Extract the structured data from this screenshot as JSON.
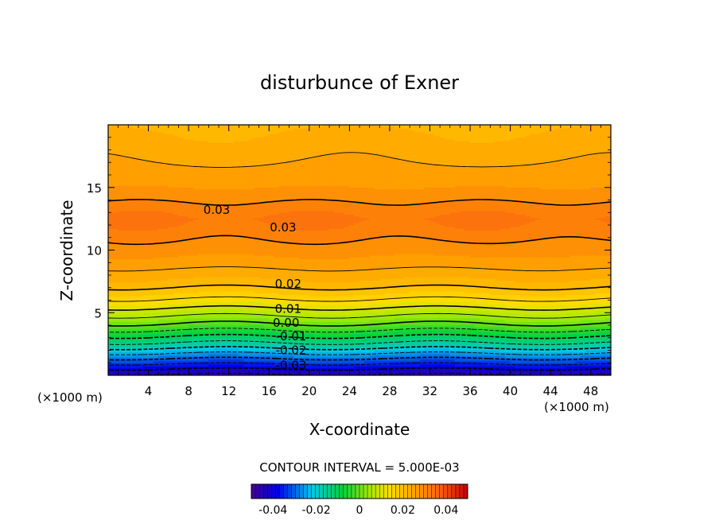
{
  "chart_data": {
    "type": "heatmap",
    "title": "disturbunce of Exner",
    "xlabel": "X-coordinate",
    "ylabel": "Z-coordinate",
    "x_unit": "(×1000 m)",
    "y_unit": "(×1000 m)",
    "xlim": [
      0,
      50
    ],
    "ylim": [
      0,
      20
    ],
    "x_ticks": [
      "4",
      "8",
      "12",
      "16",
      "20",
      "24",
      "28",
      "32",
      "36",
      "40",
      "44",
      "48"
    ],
    "x_tick_values": [
      4,
      8,
      12,
      16,
      20,
      24,
      28,
      32,
      36,
      40,
      44,
      48
    ],
    "y_ticks": [
      "5",
      "10",
      "15"
    ],
    "y_tick_values": [
      5,
      10,
      15
    ],
    "contour_interval_text": "CONTOUR INTERVAL = 5.000E-03",
    "contour_interval": 0.005,
    "value_range": [
      -0.05,
      0.05
    ],
    "profile": {
      "z": [
        0,
        0.5,
        1,
        1.5,
        2,
        2.5,
        3,
        3.5,
        4,
        4.5,
        5,
        5.5,
        6,
        6.5,
        7,
        7.5,
        8,
        8.5,
        9,
        9.5,
        10,
        10.5,
        11,
        11.5,
        12,
        12.5,
        13,
        13.5,
        14,
        14.5,
        15,
        15.5,
        16,
        16.5,
        17,
        17.5,
        18,
        18.5,
        19,
        19.5,
        20
      ],
      "value": [
        -0.046,
        -0.04,
        -0.034,
        -0.028,
        -0.022,
        -0.016,
        -0.011,
        -0.006,
        -0.001,
        0.003,
        0.007,
        0.011,
        0.0145,
        0.0175,
        0.02,
        0.022,
        0.0235,
        0.025,
        0.0265,
        0.0275,
        0.0285,
        0.0295,
        0.0305,
        0.0315,
        0.0325,
        0.033,
        0.032,
        0.031,
        0.0295,
        0.0285,
        0.0275,
        0.0268,
        0.026,
        0.0255,
        0.025,
        0.0245,
        0.024,
        0.0235,
        0.023,
        0.0225,
        0.022
      ]
    },
    "contour_labels": [
      {
        "text": "0.03",
        "x": 10.8,
        "z": 13.2
      },
      {
        "text": "0.03",
        "x": 17.4,
        "z": 11.8
      },
      {
        "text": "0.02",
        "x": 17.9,
        "z": 7.3
      },
      {
        "text": "0.01",
        "x": 17.9,
        "z": 5.3
      },
      {
        "text": "0.00",
        "x": 17.7,
        "z": 4.2
      },
      {
        "text": "-0.01",
        "x": 18.2,
        "z": 3.1
      },
      {
        "text": "-0.02",
        "x": 18.2,
        "z": 2.0
      },
      {
        "text": "-0.03",
        "x": 18.2,
        "z": 0.8
      }
    ],
    "grid": false,
    "legend": "colorbar-bottom",
    "colorbar_ticks": [
      "-0.04",
      "-0.02",
      "0",
      "0.02",
      "0.04"
    ],
    "colorbar_tick_values": [
      -0.04,
      -0.02,
      0,
      0.02,
      0.04
    ]
  }
}
